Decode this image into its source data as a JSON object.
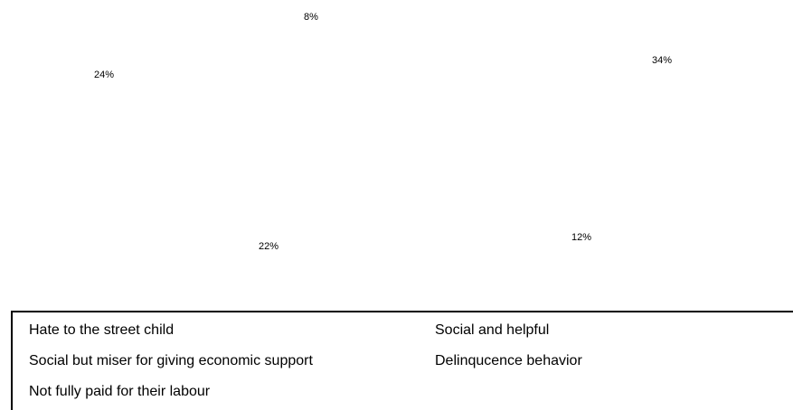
{
  "chart_data": {
    "type": "pie",
    "title": "",
    "categories": [
      "Hate to the street child",
      "Social and helpful",
      "Social but miser for giving economic support",
      "Delinqucence behavior",
      "Not fully paid for their labour"
    ],
    "values": [
      8,
      34,
      12,
      22,
      24
    ],
    "data_labels": [
      "8%",
      "34%",
      "12%",
      "22%",
      "24%"
    ],
    "legend_position": "bottom"
  },
  "legend": {
    "items": [
      "Hate to the street child",
      "Social and helpful",
      "Social but miser for giving economic support",
      "Delinqucence behavior",
      "Not fully paid for their labour"
    ]
  }
}
